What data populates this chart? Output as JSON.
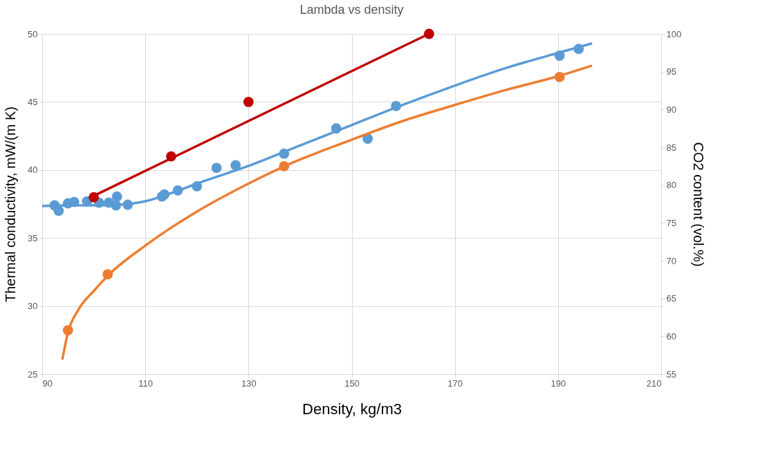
{
  "chart_data": {
    "type": "scatter",
    "title": "Lambda vs density",
    "xlabel": "Density, kg/m3",
    "ylabel": "Thermal conductivity, mW/(m K)",
    "y2label": "CO2 content (vol.%)",
    "xlim": [
      90,
      210
    ],
    "xticks": [
      90,
      110,
      130,
      150,
      170,
      190,
      210
    ],
    "ylim": [
      25,
      50
    ],
    "yticks": [
      25,
      30,
      35,
      40,
      45,
      50
    ],
    "y2lim": [
      55,
      100
    ],
    "y2ticks": [
      55,
      60,
      65,
      70,
      75,
      80,
      85,
      90,
      95,
      100
    ],
    "grid": true,
    "marker": "circle",
    "series": [
      {
        "type": "line",
        "marker": "none",
        "color": "#5b9bd5",
        "x": [
          90,
          95,
          100,
          105,
          110,
          115,
          120,
          130,
          140,
          150,
          160,
          170,
          180,
          190,
          196.6
        ],
        "values": [
          37.35,
          37.4,
          37.4,
          37.45,
          37.7,
          38.3,
          39.0,
          40.3,
          41.8,
          43.3,
          44.8,
          46.2,
          47.5,
          48.6,
          49.3
        ]
      },
      {
        "type": "line",
        "marker": "none",
        "color": "#c00000",
        "x": [
          97.8,
          164.4
        ],
        "values": [
          37.7,
          49.9
        ]
      },
      {
        "type": "line",
        "marker": "none",
        "axis": "y2",
        "color": "#ed7d31",
        "x": [
          93.9,
          95,
          97,
          100,
          103,
          110,
          120,
          130,
          137,
          150,
          160,
          170,
          180,
          190,
          196.6
        ],
        "values": [
          56.9,
          60.5,
          63.5,
          66,
          68.2,
          72,
          76.5,
          80.2,
          82.5,
          86,
          88.5,
          90.6,
          92.6,
          94.4,
          95.8
        ]
      },
      {
        "color": "#5b9bd5",
        "x": [
          92.4,
          93.2,
          95.0,
          96.2,
          98.7,
          101.0,
          102.9,
          104.5,
          104.3,
          106.6,
          113.2,
          113.7,
          116.3,
          120.0,
          123.8,
          127.5,
          136.9,
          147.0,
          153.1,
          158.6,
          190.3,
          194.0
        ],
        "values": [
          37.4,
          37.0,
          37.55,
          37.65,
          37.7,
          37.6,
          37.6,
          38.05,
          37.4,
          37.45,
          38.05,
          38.2,
          38.5,
          38.8,
          40.15,
          40.35,
          41.2,
          43.05,
          42.3,
          44.7,
          48.4,
          48.9
        ]
      },
      {
        "color": "#c00000",
        "x": [
          100,
          115,
          130,
          165
        ],
        "values": [
          38,
          41,
          45,
          50
        ]
      },
      {
        "axis": "y2",
        "color": "#ed7d31",
        "x": [
          95.0,
          102.7,
          136.9,
          190.3
        ],
        "values": [
          60.8,
          68.2,
          82.5,
          94.3
        ]
      }
    ]
  }
}
